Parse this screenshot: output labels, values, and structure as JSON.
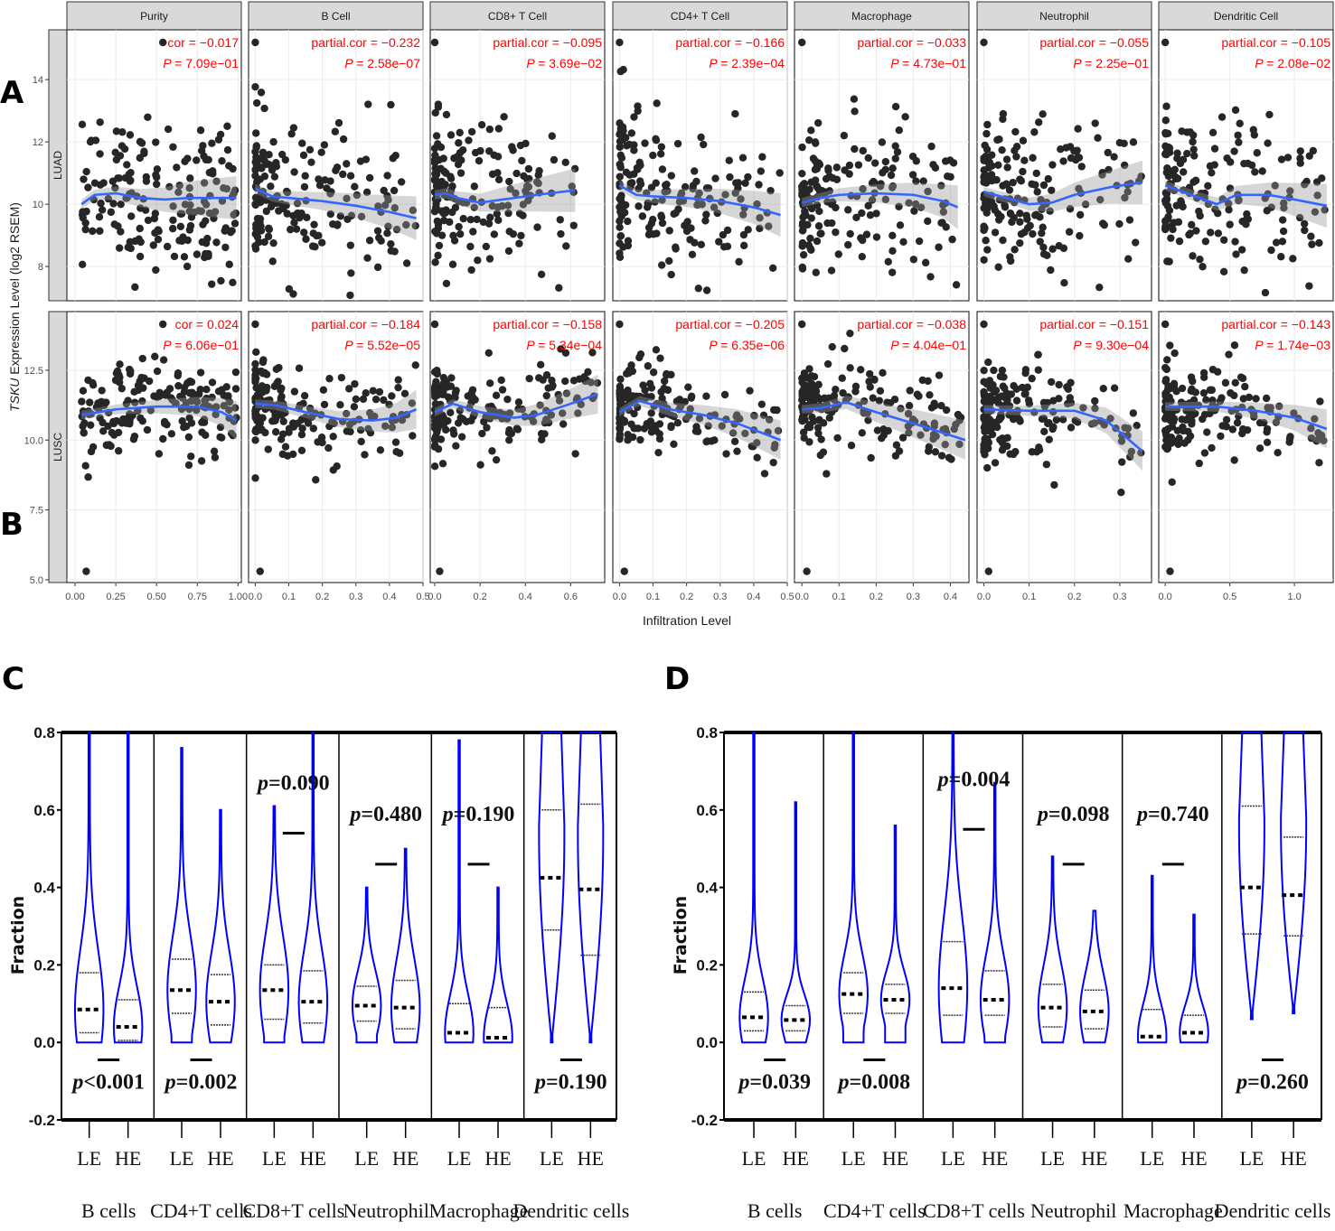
{
  "figure": {
    "panel_labels": [
      "A",
      "B",
      "C",
      "D"
    ]
  },
  "chart_data": [
    {
      "type": "scatter",
      "id": "AB",
      "title": "",
      "xlabel": "Infiltration Level",
      "ylabel_italic": "TSKU",
      "ylabel_rest": " Expression Level (log2 RSEM)",
      "columns": [
        "Purity",
        "B Cell",
        "CD8+ T Cell",
        "CD4+ T Cell",
        "Macrophage",
        "Neutrophil",
        "Dendritic Cell"
      ],
      "rows": [
        {
          "name": "LUAD",
          "ylim": [
            6.9,
            15.6
          ],
          "yticks": [
            "8",
            "10",
            "12",
            "14"
          ],
          "ytick_values": [
            8,
            10,
            12,
            14
          ],
          "stats": [
            {
              "cor_label": "cor = −0.017",
              "p_label": "= 7.09e−01"
            },
            {
              "cor_label": "partial.cor = −0.232",
              "p_label": "= 2.58e−07"
            },
            {
              "cor_label": "partial.cor = −0.095",
              "p_label": "= 3.69e−02"
            },
            {
              "cor_label": "partial.cor = −0.166",
              "p_label": "= 2.39e−04"
            },
            {
              "cor_label": "partial.cor = −0.033",
              "p_label": "= 4.73e−01"
            },
            {
              "cor_label": "partial.cor = −0.055",
              "p_label": "= 2.25e−01"
            },
            {
              "cor_label": "partial.cor = −0.105",
              "p_label": "= 2.08e−02"
            }
          ],
          "fit": [
            [
              [
                0.04,
                10.0
              ],
              [
                0.12,
                10.3
              ],
              [
                0.25,
                10.35
              ],
              [
                0.4,
                10.2
              ],
              [
                0.55,
                10.15
              ],
              [
                0.7,
                10.2
              ],
              [
                0.99,
                10.2
              ]
            ],
            [
              [
                0.0,
                10.5
              ],
              [
                0.05,
                10.25
              ],
              [
                0.1,
                10.2
              ],
              [
                0.2,
                10.1
              ],
              [
                0.3,
                9.95
              ],
              [
                0.4,
                9.75
              ],
              [
                0.48,
                9.55
              ]
            ],
            [
              [
                0.0,
                10.3
              ],
              [
                0.05,
                10.35
              ],
              [
                0.1,
                10.2
              ],
              [
                0.2,
                10.05
              ],
              [
                0.3,
                10.15
              ],
              [
                0.45,
                10.3
              ],
              [
                0.62,
                10.45
              ]
            ],
            [
              [
                0.0,
                10.6
              ],
              [
                0.05,
                10.3
              ],
              [
                0.1,
                10.25
              ],
              [
                0.2,
                10.2
              ],
              [
                0.3,
                10.1
              ],
              [
                0.4,
                9.9
              ],
              [
                0.48,
                9.65
              ]
            ],
            [
              [
                0.0,
                10.05
              ],
              [
                0.05,
                10.2
              ],
              [
                0.1,
                10.3
              ],
              [
                0.2,
                10.35
              ],
              [
                0.3,
                10.3
              ],
              [
                0.38,
                10.1
              ],
              [
                0.42,
                9.9
              ]
            ],
            [
              [
                0.0,
                10.4
              ],
              [
                0.05,
                10.2
              ],
              [
                0.1,
                10.0
              ],
              [
                0.15,
                10.05
              ],
              [
                0.2,
                10.3
              ],
              [
                0.28,
                10.55
              ],
              [
                0.35,
                10.7
              ]
            ],
            [
              [
                0.0,
                10.6
              ],
              [
                0.2,
                10.3
              ],
              [
                0.4,
                10.0
              ],
              [
                0.55,
                10.3
              ],
              [
                0.8,
                10.3
              ],
              [
                1.0,
                10.15
              ],
              [
                1.25,
                9.95
              ]
            ]
          ]
        },
        {
          "name": "LUSC",
          "ylim": [
            4.9,
            14.6
          ],
          "yticks": [
            "5.0",
            "7.5",
            "10.0",
            "12.5"
          ],
          "ytick_values": [
            5.0,
            7.5,
            10.0,
            12.5
          ],
          "stats": [
            {
              "cor_label": "cor = 0.024",
              "p_label": "= 6.06e−01"
            },
            {
              "cor_label": "partial.cor = −0.184",
              "p_label": "= 5.52e−05"
            },
            {
              "cor_label": "partial.cor = −0.158",
              "p_label": "= 5.34e−04"
            },
            {
              "cor_label": "partial.cor = −0.205",
              "p_label": "= 6.35e−06"
            },
            {
              "cor_label": "partial.cor = −0.038",
              "p_label": "= 4.04e−01"
            },
            {
              "cor_label": "partial.cor = −0.151",
              "p_label": "= 9.30e−04"
            },
            {
              "cor_label": "partial.cor = −0.143",
              "p_label": "= 1.74e−03"
            }
          ],
          "fit": [
            [
              [
                0.04,
                10.9
              ],
              [
                0.25,
                11.1
              ],
              [
                0.5,
                11.2
              ],
              [
                0.75,
                11.2
              ],
              [
                0.9,
                11.0
              ],
              [
                0.99,
                10.7
              ]
            ],
            [
              [
                0.0,
                11.3
              ],
              [
                0.06,
                11.25
              ],
              [
                0.15,
                11.0
              ],
              [
                0.25,
                10.75
              ],
              [
                0.35,
                10.7
              ],
              [
                0.42,
                10.8
              ],
              [
                0.48,
                11.1
              ]
            ],
            [
              [
                0.0,
                11.0
              ],
              [
                0.08,
                11.3
              ],
              [
                0.2,
                11.0
              ],
              [
                0.35,
                10.8
              ],
              [
                0.45,
                10.9
              ],
              [
                0.6,
                11.3
              ],
              [
                0.72,
                11.65
              ]
            ],
            [
              [
                0.0,
                11.0
              ],
              [
                0.06,
                11.4
              ],
              [
                0.15,
                11.1
              ],
              [
                0.25,
                10.9
              ],
              [
                0.35,
                10.6
              ],
              [
                0.48,
                10.0
              ]
            ],
            [
              [
                0.0,
                11.1
              ],
              [
                0.05,
                11.15
              ],
              [
                0.12,
                11.35
              ],
              [
                0.2,
                11.0
              ],
              [
                0.3,
                10.6
              ],
              [
                0.44,
                10.0
              ]
            ],
            [
              [
                0.0,
                11.1
              ],
              [
                0.1,
                11.05
              ],
              [
                0.2,
                11.05
              ],
              [
                0.27,
                10.7
              ],
              [
                0.35,
                9.6
              ]
            ],
            [
              [
                0.0,
                11.2
              ],
              [
                0.4,
                11.2
              ],
              [
                0.7,
                11.05
              ],
              [
                1.0,
                10.8
              ],
              [
                1.25,
                10.4
              ]
            ]
          ]
        }
      ],
      "xaxes": [
        {
          "xlim": [
            -0.05,
            1.02
          ],
          "ticks": [
            "0.00",
            "0.25",
            "0.50",
            "0.75",
            "1.00"
          ],
          "tick_values": [
            0,
            0.25,
            0.5,
            0.75,
            1.0
          ]
        },
        {
          "xlim": [
            -0.02,
            0.5
          ],
          "ticks": [
            "0.0",
            "0.1",
            "0.2",
            "0.3",
            "0.4",
            "0.5"
          ],
          "tick_values": [
            0,
            0.1,
            0.2,
            0.3,
            0.4,
            0.5
          ]
        },
        {
          "xlim": [
            -0.02,
            0.75
          ],
          "ticks": [
            "0.0",
            "0.2",
            "0.4",
            "0.6"
          ],
          "tick_values": [
            0,
            0.2,
            0.4,
            0.6
          ]
        },
        {
          "xlim": [
            -0.02,
            0.5
          ],
          "ticks": [
            "0.0",
            "0.1",
            "0.2",
            "0.3",
            "0.4",
            "0.5"
          ],
          "tick_values": [
            0,
            0.1,
            0.2,
            0.3,
            0.4,
            0.5
          ]
        },
        {
          "xlim": [
            -0.02,
            0.45
          ],
          "ticks": [
            "0.0",
            "0.1",
            "0.2",
            "0.3",
            "0.4"
          ],
          "tick_values": [
            0,
            0.1,
            0.2,
            0.3,
            0.4
          ]
        },
        {
          "xlim": [
            -0.015,
            0.37
          ],
          "ticks": [
            "0.0",
            "0.1",
            "0.2",
            "0.3"
          ],
          "tick_values": [
            0,
            0.1,
            0.2,
            0.3
          ]
        },
        {
          "xlim": [
            -0.05,
            1.3
          ],
          "ticks": [
            "0.0",
            "0.5",
            "1.0"
          ],
          "tick_values": [
            0,
            0.5,
            1.0
          ]
        }
      ],
      "point_color": "#262626",
      "fit_color": "#3366ff",
      "stat_color": "#ff0000",
      "grid": true
    },
    {
      "type": "violin",
      "id": "C",
      "ylabel": "Fraction",
      "ylim": [
        -0.2,
        0.8
      ],
      "yticks": [
        "-0.2",
        "0.0",
        "0.2",
        "0.4",
        "0.6",
        "0.8"
      ],
      "ytick_values": [
        -0.2,
        0.0,
        0.2,
        0.4,
        0.6,
        0.8
      ],
      "group_labels": [
        "LE",
        "HE"
      ],
      "categories": [
        "B cells",
        "CD4+T cells",
        "CD8+T cells",
        "Neutrophil",
        "Macrophage",
        "Dendritic cells"
      ],
      "p_values": [
        "<0.001",
        "=0.002",
        "=0.090",
        "=0.480",
        "=0.190",
        "=0.190"
      ],
      "p_position": [
        "bottom",
        "bottom",
        "top",
        "top",
        "top",
        "bottom"
      ],
      "violins": [
        [
          {
            "max": 0.8,
            "q1": 0.025,
            "median": 0.085,
            "q3": 0.18
          },
          {
            "max": 0.8,
            "q1": 0.005,
            "median": 0.04,
            "q3": 0.11
          }
        ],
        [
          {
            "max": 0.76,
            "q1": 0.075,
            "median": 0.135,
            "q3": 0.215
          },
          {
            "max": 0.6,
            "q1": 0.045,
            "median": 0.105,
            "q3": 0.175
          }
        ],
        [
          {
            "max": 0.61,
            "q1": 0.06,
            "median": 0.135,
            "q3": 0.2
          },
          {
            "max": 0.8,
            "q1": 0.05,
            "median": 0.105,
            "q3": 0.185
          }
        ],
        [
          {
            "max": 0.4,
            "q1": 0.055,
            "median": 0.095,
            "q3": 0.145
          },
          {
            "max": 0.5,
            "q1": 0.035,
            "median": 0.09,
            "q3": 0.16
          }
        ],
        [
          {
            "max": 0.78,
            "q1": 0.0,
            "median": 0.025,
            "q3": 0.1
          },
          {
            "max": 0.4,
            "q1": 0.0,
            "median": 0.012,
            "q3": 0.09
          }
        ],
        [
          {
            "max": 0.8,
            "min": 0.0,
            "q1": 0.29,
            "median": 0.425,
            "q3": 0.6
          },
          {
            "max": 0.8,
            "min": 0.0,
            "q1": 0.225,
            "median": 0.395,
            "q3": 0.615
          }
        ]
      ],
      "violin_color": "#0000ff"
    },
    {
      "type": "violin",
      "id": "D",
      "ylabel": "Fraction",
      "ylim": [
        -0.2,
        0.8
      ],
      "yticks": [
        "-0.2",
        "0.0",
        "0.2",
        "0.4",
        "0.6",
        "0.8"
      ],
      "ytick_values": [
        -0.2,
        0.0,
        0.2,
        0.4,
        0.6,
        0.8
      ],
      "group_labels": [
        "LE",
        "HE"
      ],
      "categories": [
        "B cells",
        "CD4+T cells",
        "CD8+T cells",
        "Neutrophil",
        "Macrophage",
        "Dendritic cells"
      ],
      "p_values": [
        "=0.039",
        "=0.008",
        "=0.004",
        "=0.098",
        "=0.740",
        "=0.260"
      ],
      "p_position": [
        "bottom",
        "bottom",
        "top",
        "top",
        "top",
        "bottom"
      ],
      "violins": [
        [
          {
            "max": 0.8,
            "q1": 0.03,
            "median": 0.065,
            "q3": 0.13
          },
          {
            "max": 0.62,
            "q1": 0.03,
            "median": 0.058,
            "q3": 0.095
          }
        ],
        [
          {
            "max": 0.8,
            "q1": 0.075,
            "median": 0.125,
            "q3": 0.18
          },
          {
            "max": 0.56,
            "q1": 0.075,
            "median": 0.11,
            "q3": 0.15
          }
        ],
        [
          {
            "max": 0.8,
            "q1": 0.07,
            "median": 0.14,
            "q3": 0.26
          },
          {
            "max": 0.67,
            "q1": 0.07,
            "median": 0.11,
            "q3": 0.185
          }
        ],
        [
          {
            "max": 0.48,
            "q1": 0.04,
            "median": 0.09,
            "q3": 0.15
          },
          {
            "max": 0.34,
            "q1": 0.035,
            "median": 0.08,
            "q3": 0.135
          }
        ],
        [
          {
            "max": 0.43,
            "q1": 0.0,
            "median": 0.015,
            "q3": 0.085
          },
          {
            "max": 0.33,
            "q1": 0.0,
            "median": 0.025,
            "q3": 0.07
          }
        ],
        [
          {
            "max": 0.8,
            "min": 0.06,
            "q1": 0.28,
            "median": 0.4,
            "q3": 0.61
          },
          {
            "max": 0.8,
            "min": 0.075,
            "q1": 0.275,
            "median": 0.38,
            "q3": 0.53
          }
        ]
      ],
      "violin_color": "#0000ff"
    }
  ]
}
